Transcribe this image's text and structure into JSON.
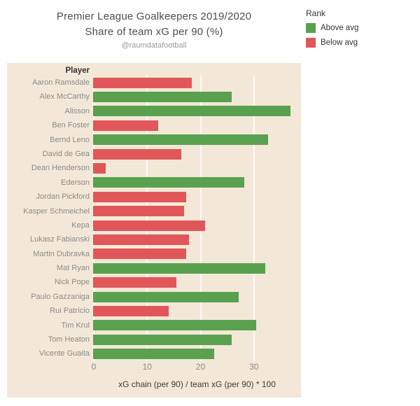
{
  "title": {
    "line1": "Premier League Goalkeepers 2019/2020",
    "line2": "Share of team xG per 90 (%)",
    "credit": "@raumdatafootball"
  },
  "legend": {
    "title": "Rank",
    "items": [
      {
        "label": "Above avg",
        "color": "#59a14f"
      },
      {
        "label": "Below avg",
        "color": "#e15759"
      }
    ]
  },
  "chart_data": {
    "type": "bar",
    "orientation": "horizontal",
    "column_header": "Player",
    "categories": [
      "Aaron Ramsdale",
      "Alex McCarthy",
      "Alisson",
      "Ben Foster",
      "Bernd Leno",
      "David de Gea",
      "Dean Henderson",
      "Ederson",
      "Jordan Pickford",
      "Kasper Schmeichel",
      "Kepa",
      "Lukasz Fabianski",
      "Martin Dubravka",
      "Mat Ryan",
      "Nick Pope",
      "Paulo Gazzaniga",
      "Rui Patrício",
      "Tim Krul",
      "Tom Heaton",
      "Vicente Guaita"
    ],
    "values": [
      18.5,
      26.0,
      36.9,
      12.2,
      32.8,
      16.5,
      2.4,
      28.3,
      17.4,
      17.0,
      21.0,
      18.0,
      17.4,
      32.3,
      15.6,
      27.3,
      14.1,
      30.5,
      25.9,
      22.7
    ],
    "rank": [
      "below",
      "above",
      "above",
      "below",
      "above",
      "below",
      "below",
      "above",
      "below",
      "below",
      "below",
      "below",
      "below",
      "above",
      "below",
      "above",
      "below",
      "above",
      "above",
      "above"
    ],
    "series_name": "Rank",
    "rank_labels": {
      "above": "Above avg",
      "below": "Below avg"
    },
    "colors": {
      "above": "#59a14f",
      "below": "#e15759"
    },
    "panel_background": "#f3e8d7",
    "x_ticks": [
      0,
      10,
      20,
      30
    ],
    "xlim": [
      0,
      39
    ],
    "xlabel": "xG chain (per 90) / team xG (per 90) * 100",
    "grid": "vertical-on"
  }
}
